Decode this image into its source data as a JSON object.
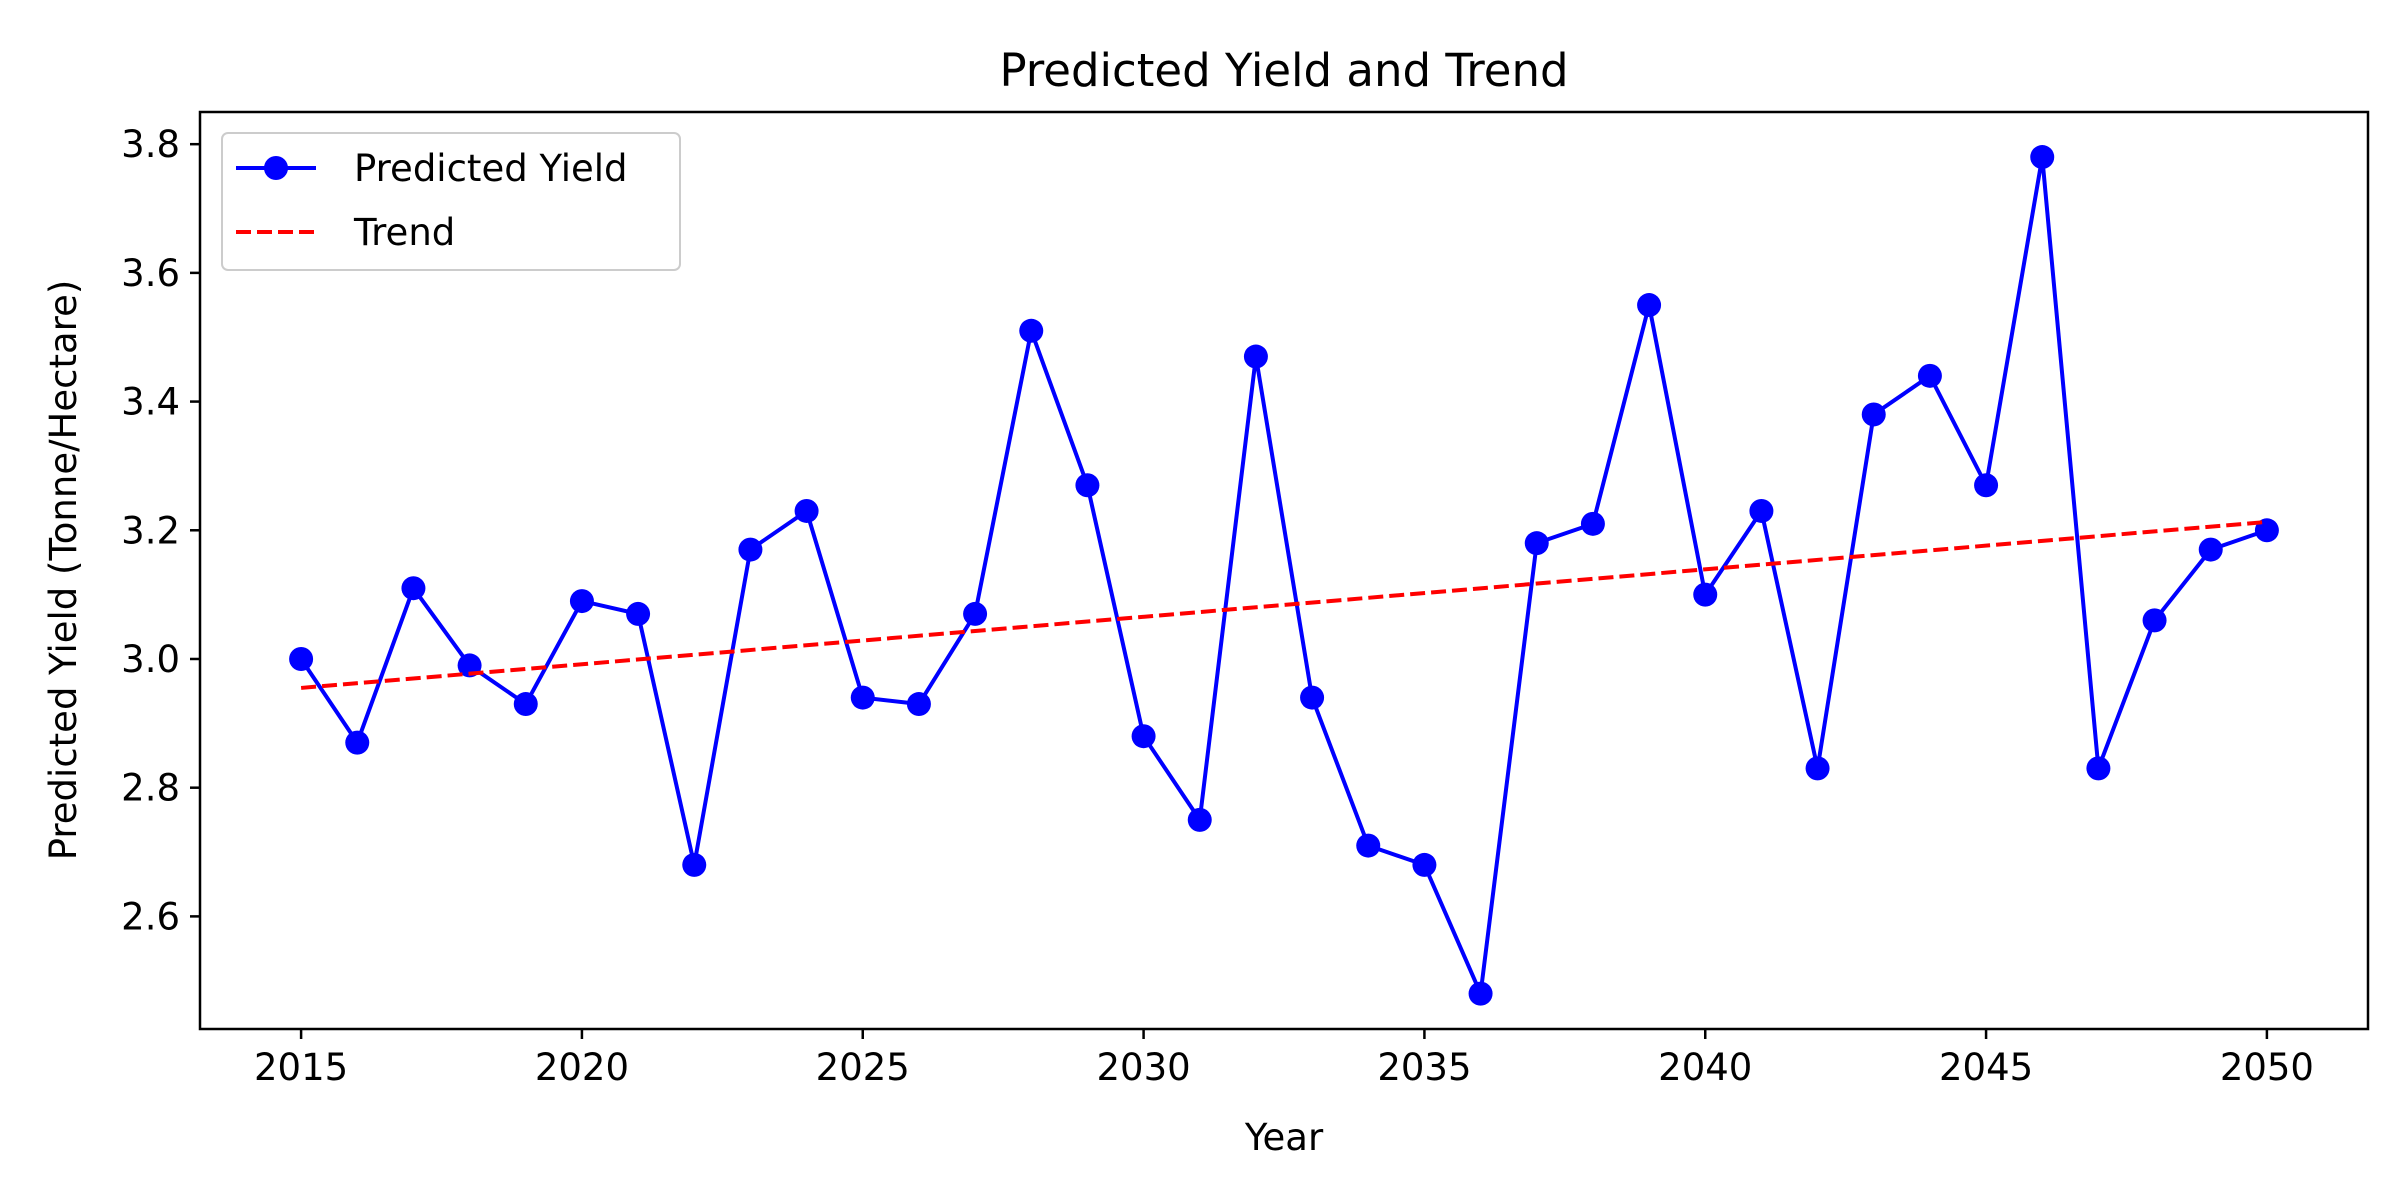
{
  "chart_data": {
    "type": "line",
    "title": "Predicted Yield and Trend",
    "xlabel": "Year",
    "ylabel": "Predicted Yield (Tonne/Hectare)",
    "xlim": [
      2013.2,
      2051.8
    ],
    "ylim": [
      2.425,
      3.85
    ],
    "xticks": [
      2015,
      2020,
      2025,
      2030,
      2035,
      2040,
      2045,
      2050
    ],
    "yticks": [
      2.6,
      2.8,
      3.0,
      3.2,
      3.4,
      3.6,
      3.8
    ],
    "ytick_labels": [
      "2.6",
      "2.8",
      "3.0",
      "3.2",
      "3.4",
      "3.6",
      "3.8"
    ],
    "grid": false,
    "legend_position": "top-left",
    "x": [
      2015,
      2016,
      2017,
      2018,
      2019,
      2020,
      2021,
      2022,
      2023,
      2024,
      2025,
      2026,
      2027,
      2028,
      2029,
      2030,
      2031,
      2032,
      2033,
      2034,
      2035,
      2036,
      2037,
      2038,
      2039,
      2040,
      2041,
      2042,
      2043,
      2044,
      2045,
      2046,
      2047,
      2048,
      2049,
      2050
    ],
    "series": [
      {
        "name": "Predicted Yield",
        "style": "solid line with circle markers",
        "color": "#0000ff",
        "values": [
          3.0,
          2.87,
          3.11,
          2.99,
          2.93,
          3.09,
          3.07,
          2.68,
          3.17,
          3.23,
          2.94,
          2.93,
          3.07,
          3.51,
          3.27,
          2.88,
          2.75,
          3.47,
          2.94,
          2.71,
          2.68,
          2.48,
          3.18,
          3.21,
          3.55,
          3.1,
          3.23,
          2.83,
          3.38,
          3.44,
          3.27,
          3.78,
          2.83,
          3.06,
          3.17,
          3.2
        ]
      },
      {
        "name": "Trend",
        "style": "dashed line",
        "color": "#ff0000",
        "x": [
          2015,
          2050
        ],
        "values": [
          2.955,
          3.213
        ]
      }
    ]
  }
}
